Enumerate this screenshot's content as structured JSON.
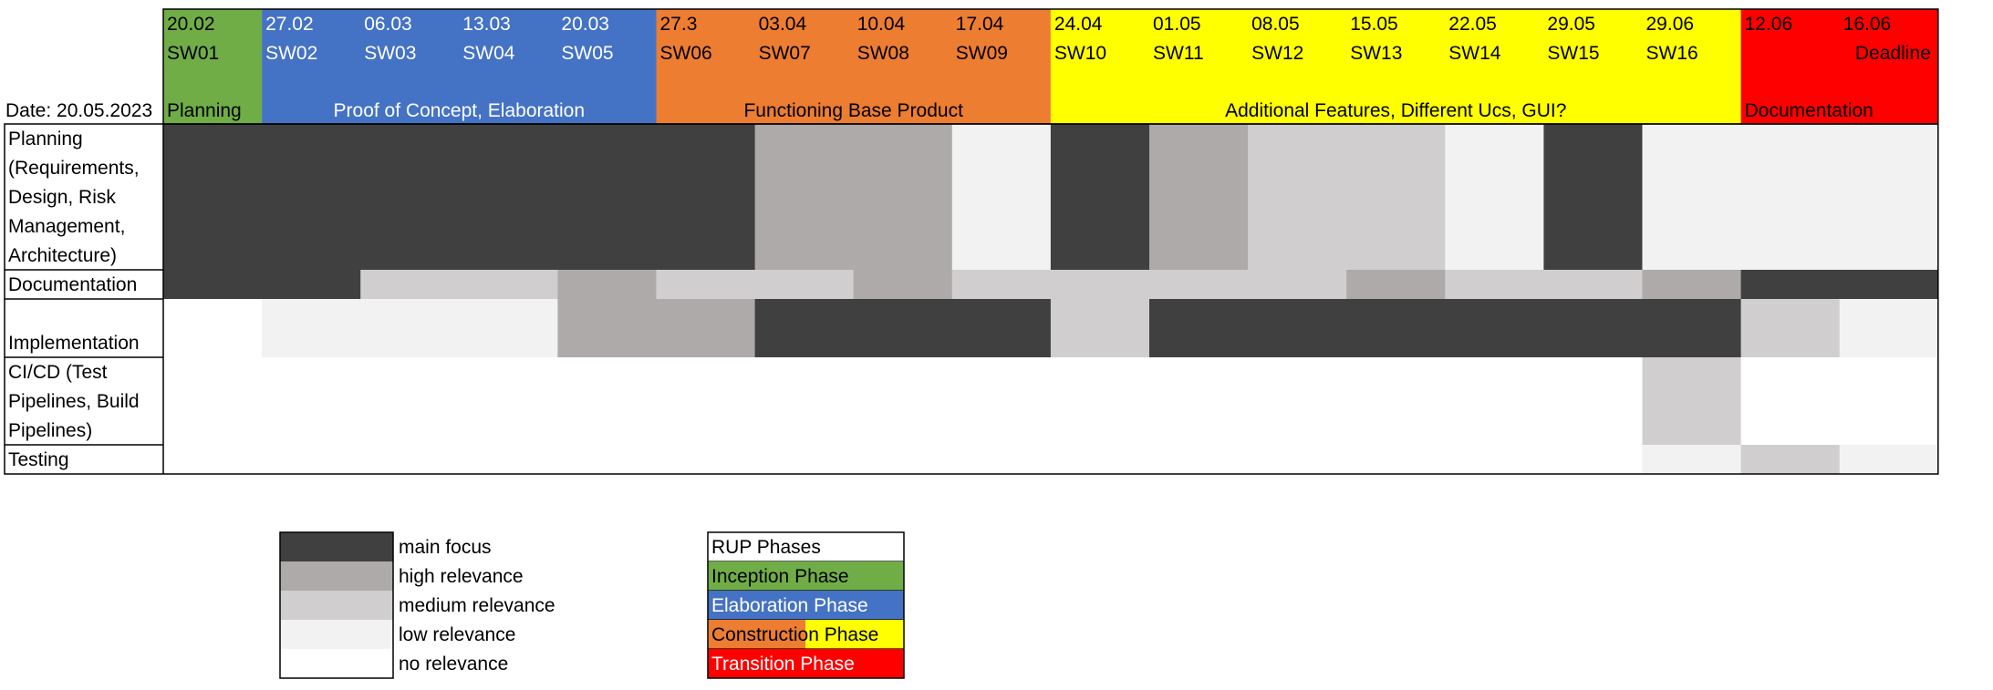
{
  "chart_data": {
    "type": "heatmap",
    "date_label": "Date: 20.05.2023",
    "weeks": [
      {
        "date": "20.02",
        "sw": "SW01"
      },
      {
        "date": "27.02",
        "sw": "SW02"
      },
      {
        "date": "06.03",
        "sw": "SW03"
      },
      {
        "date": "13.03",
        "sw": "SW04"
      },
      {
        "date": "20.03",
        "sw": "SW05"
      },
      {
        "date": "27.3",
        "sw": "SW06"
      },
      {
        "date": "03.04",
        "sw": "SW07"
      },
      {
        "date": "10.04",
        "sw": "SW08"
      },
      {
        "date": "17.04",
        "sw": "SW09"
      },
      {
        "date": "24.04",
        "sw": "SW10"
      },
      {
        "date": "01.05",
        "sw": "SW11"
      },
      {
        "date": "08.05",
        "sw": "SW12"
      },
      {
        "date": "15.05",
        "sw": "SW13"
      },
      {
        "date": "22.05",
        "sw": "SW14"
      },
      {
        "date": "29.05",
        "sw": "SW15"
      },
      {
        "date": "29.06",
        "sw": "SW16"
      },
      {
        "date": "12.06",
        "sw": ""
      },
      {
        "date": "16.06",
        "sw": "Deadline"
      }
    ],
    "phases": [
      {
        "label": "Planning",
        "start": 0,
        "end": 0,
        "color": "#70ad47",
        "text_color": "#000000",
        "align": "start"
      },
      {
        "label": "Proof of Concept, Elaboration",
        "start": 1,
        "end": 4,
        "color": "#4472c4",
        "text_color": "#ffffff",
        "align": "middle"
      },
      {
        "label": "Functioning Base Product",
        "start": 5,
        "end": 8,
        "color": "#ed7d31",
        "text_color": "#000000",
        "align": "middle"
      },
      {
        "label": "Additional Features, Different Ucs, GUI?",
        "start": 9,
        "end": 15,
        "color": "#ffff00",
        "text_color": "#000000",
        "align": "middle"
      },
      {
        "label": "Documentation",
        "start": 16,
        "end": 17,
        "color": "#ff0000",
        "text_color": "#000000",
        "align": "start"
      }
    ],
    "rows": [
      {
        "label": [
          "Planning",
          "(Requirements,",
          "Design, Risk",
          "Management,",
          "Architecture)"
        ],
        "values": [
          4,
          4,
          4,
          4,
          4,
          4,
          3,
          3,
          1,
          4,
          3,
          2,
          2,
          1,
          4,
          1,
          1,
          1
        ]
      },
      {
        "label": [
          "Documentation"
        ],
        "values": [
          4,
          4,
          2,
          2,
          3,
          2,
          2,
          3,
          2,
          2,
          2,
          2,
          3,
          2,
          2,
          3,
          4,
          4
        ]
      },
      {
        "label": [
          "",
          "Implementation"
        ],
        "values": [
          0,
          1,
          1,
          1,
          3,
          3,
          4,
          4,
          4,
          2,
          4,
          4,
          4,
          4,
          4,
          4,
          2,
          1
        ]
      },
      {
        "label": [
          "CI/CD (Test",
          "Pipelines, Build",
          "Pipelines)"
        ],
        "values": [
          0,
          0,
          0,
          0,
          0,
          0,
          0,
          0,
          0,
          0,
          0,
          0,
          0,
          0,
          0,
          2,
          0,
          0
        ]
      },
      {
        "label": [
          "Testing"
        ],
        "values": [
          0,
          0,
          0,
          0,
          0,
          0,
          0,
          0,
          0,
          0,
          0,
          0,
          0,
          0,
          0,
          1,
          2,
          1
        ]
      }
    ],
    "levels": [
      {
        "value": 4,
        "label": "main focus",
        "color": "#404040"
      },
      {
        "value": 3,
        "label": "high relevance",
        "color": "#aeaaaa"
      },
      {
        "value": 2,
        "label": "medium relevance",
        "color": "#d0cece"
      },
      {
        "value": 1,
        "label": "low relevance",
        "color": "#f2f2f2"
      },
      {
        "value": 0,
        "label": "no relevance",
        "color": "#ffffff"
      }
    ],
    "rup_legend": {
      "title": "RUP Phases",
      "items": [
        {
          "label": "Inception Phase",
          "colors": [
            "#70ad47"
          ],
          "text_color": "#000000"
        },
        {
          "label": "Elaboration Phase",
          "colors": [
            "#4472c4"
          ],
          "text_color": "#ffffff"
        },
        {
          "label": "Construction Phase",
          "colors": [
            "#ed7d31",
            "#ffff00"
          ],
          "text_color": "#000000"
        },
        {
          "label": "Transition Phase",
          "colors": [
            "#ff0000"
          ],
          "text_color": "#ffffff"
        }
      ]
    }
  }
}
